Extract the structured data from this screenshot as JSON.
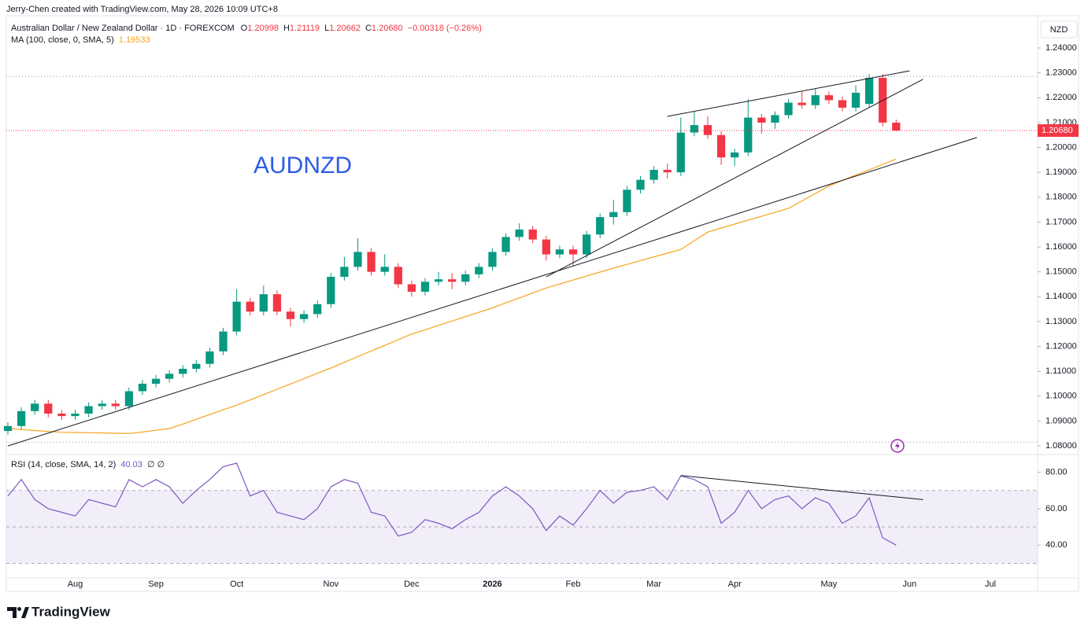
{
  "header": {
    "attribution": "Jerry-Chen created with TradingView.com, May 28, 2026 10:09 UTC+8",
    "symbol": "Australian Dollar / New Zealand Dollar · 1D · FOREXCOM",
    "o": "O",
    "h": "H",
    "l": "L",
    "c": "C",
    "change": "−0.00318 (−0.26%)",
    "currency": "NZD",
    "watermark": "AUDNZD",
    "brand": "TradingView"
  },
  "chart_data": [
    {
      "type": "candlestick",
      "categories": [
        null,
        null,
        null,
        null,
        null,
        "Aug",
        null,
        null,
        null,
        null,
        null,
        "Sep",
        null,
        null,
        null,
        null,
        null,
        "Oct",
        null,
        null,
        null,
        null,
        null,
        null,
        "Nov",
        null,
        null,
        null,
        null,
        null,
        "Dec",
        null,
        null,
        null,
        null,
        null,
        "2026",
        null,
        null,
        null,
        null,
        null,
        "Feb",
        null,
        null,
        null,
        null,
        null,
        "Mar",
        null,
        null,
        null,
        null,
        null,
        "Apr",
        null,
        null,
        null,
        null,
        null,
        null,
        "May",
        null,
        null,
        null,
        null,
        null,
        "Jun",
        null,
        null,
        null,
        null,
        null,
        "Jul"
      ],
      "open": [
        1.086,
        1.088,
        1.094,
        1.097,
        1.093,
        1.092,
        1.093,
        1.096,
        1.097,
        1.096,
        1.102,
        1.105,
        1.107,
        1.109,
        1.111,
        1.113,
        1.118,
        1.126,
        1.138,
        1.134,
        1.141,
        1.134,
        1.131,
        1.133,
        1.137,
        1.148,
        1.152,
        1.158,
        1.15,
        1.152,
        1.145,
        1.142,
        1.146,
        1.147,
        1.146,
        1.149,
        1.152,
        1.158,
        1.164,
        1.167,
        1.163,
        1.157,
        1.159,
        1.157,
        1.165,
        1.172,
        1.174,
        1.183,
        1.187,
        1.191,
        1.19,
        1.206,
        1.209,
        1.205,
        1.196,
        1.198,
        1.212,
        1.21,
        1.213,
        1.218,
        1.217,
        1.221,
        1.219,
        1.216,
        1.2175,
        1.228,
        1.20998,
        null,
        null,
        null,
        null,
        null,
        null,
        null
      ],
      "high": [
        1.0895,
        1.0955,
        1.0985,
        1.0985,
        1.0945,
        1.0945,
        1.0975,
        1.0985,
        1.0985,
        1.1035,
        1.1065,
        1.1085,
        1.1105,
        1.1125,
        1.1145,
        1.1195,
        1.1275,
        1.143,
        1.1395,
        1.1445,
        1.1425,
        1.1355,
        1.1345,
        1.1385,
        1.1495,
        1.156,
        1.1635,
        1.1595,
        1.157,
        1.1535,
        1.1465,
        1.1475,
        1.15,
        1.1495,
        1.1505,
        1.1535,
        1.1595,
        1.1655,
        1.1695,
        1.1685,
        1.1645,
        1.1605,
        1.1605,
        1.1665,
        1.1735,
        1.179,
        1.1845,
        1.1885,
        1.1925,
        1.1935,
        1.212,
        1.2145,
        1.2125,
        1.2065,
        1.1995,
        1.2195,
        1.2135,
        1.2145,
        1.2195,
        1.2225,
        1.2235,
        1.2225,
        1.2205,
        1.225,
        1.2295,
        1.2295,
        1.21119,
        null,
        null,
        null,
        null,
        null,
        null,
        null
      ],
      "low": [
        1.0845,
        1.0865,
        1.0925,
        1.0915,
        1.0905,
        1.0905,
        1.0915,
        1.0945,
        1.0945,
        1.0945,
        1.1005,
        1.1035,
        1.1055,
        1.1075,
        1.1095,
        1.1115,
        1.1165,
        1.1245,
        1.1325,
        1.1325,
        1.1325,
        1.128,
        1.1295,
        1.1315,
        1.1355,
        1.1465,
        1.1505,
        1.1485,
        1.1485,
        1.1435,
        1.14,
        1.1405,
        1.1445,
        1.143,
        1.1445,
        1.1475,
        1.1505,
        1.1565,
        1.1625,
        1.1615,
        1.1545,
        1.1555,
        1.1525,
        1.1555,
        1.1635,
        1.169,
        1.1725,
        1.1815,
        1.1855,
        1.1875,
        1.1885,
        1.2045,
        1.2035,
        1.193,
        1.1925,
        1.1965,
        1.2055,
        1.2075,
        1.2115,
        1.2155,
        1.2155,
        1.2175,
        1.2145,
        1.2145,
        1.216,
        1.2085,
        1.20662,
        null,
        null,
        null,
        null,
        null,
        null,
        null
      ],
      "close": [
        1.088,
        1.094,
        1.097,
        1.093,
        1.092,
        1.093,
        1.096,
        1.097,
        1.096,
        1.102,
        1.105,
        1.107,
        1.109,
        1.111,
        1.113,
        1.118,
        1.126,
        1.138,
        1.134,
        1.141,
        1.134,
        1.131,
        1.133,
        1.137,
        1.148,
        1.152,
        1.158,
        1.15,
        1.152,
        1.145,
        1.142,
        1.146,
        1.147,
        1.146,
        1.149,
        1.152,
        1.158,
        1.164,
        1.167,
        1.163,
        1.157,
        1.159,
        1.157,
        1.165,
        1.172,
        1.174,
        1.183,
        1.187,
        1.191,
        1.19,
        1.206,
        1.209,
        1.205,
        1.196,
        1.198,
        1.212,
        1.21,
        1.213,
        1.218,
        1.217,
        1.221,
        1.219,
        1.216,
        1.222,
        1.228,
        1.21,
        1.2068,
        null,
        null,
        null,
        null,
        null,
        null,
        null
      ],
      "last_price_label": "1.20680",
      "colors": {
        "up": "#089981",
        "down": "#f23645"
      },
      "series": [
        {
          "name": "MA (100, close, 0, SMA, 5)",
          "color": "#f7a21b",
          "values": [
            1.087,
            1.0866,
            1.0862,
            1.0858,
            1.0855,
            1.0854,
            1.0853,
            1.0852,
            1.0851,
            1.085,
            1.0856,
            1.0863,
            1.087,
            1.0888,
            1.0907,
            1.0926,
            1.0945,
            1.0964,
            1.0985,
            1.1006,
            1.1028,
            1.1049,
            1.107,
            1.1092,
            1.1113,
            1.1136,
            1.1159,
            1.1182,
            1.1204,
            1.1227,
            1.125,
            1.1267,
            1.1285,
            1.1302,
            1.132,
            1.1337,
            1.1355,
            1.1375,
            1.1395,
            1.1415,
            1.1435,
            1.1451,
            1.1467,
            1.1483,
            1.1499,
            1.1515,
            1.153,
            1.1545,
            1.156,
            1.1575,
            1.159,
            1.1625,
            1.166,
            1.1676,
            1.1692,
            1.1708,
            1.1723,
            1.1739,
            1.1755,
            1.1785,
            1.1815,
            1.1845,
            1.1867,
            1.1889,
            1.191,
            1.1932,
            1.19533,
            null,
            null,
            null,
            null,
            null,
            null,
            null
          ]
        }
      ],
      "trendlines": [
        {
          "from": [
            0,
            1.08
          ],
          "to": [
            72,
            1.204
          ]
        },
        {
          "from": [
            40,
            1.148
          ],
          "to": [
            68,
            1.2274
          ]
        },
        {
          "from": [
            49,
            1.2125
          ],
          "to": [
            67,
            1.2308
          ]
        }
      ],
      "range_lines": [
        1.2286,
        1.0815
      ],
      "ylim": [
        1.0775,
        1.2517
      ],
      "yticks": [
        {
          "value": 1.08,
          "label": "1.08000"
        },
        {
          "value": 1.09,
          "label": "1.09000"
        },
        {
          "value": 1.1,
          "label": "1.10000"
        },
        {
          "value": 1.11,
          "label": "1.11000"
        },
        {
          "value": 1.12,
          "label": "1.12000"
        },
        {
          "value": 1.13,
          "label": "1.13000"
        },
        {
          "value": 1.14,
          "label": "1.14000"
        },
        {
          "value": 1.15,
          "label": "1.15000"
        },
        {
          "value": 1.16,
          "label": "1.16000"
        },
        {
          "value": 1.17,
          "label": "1.17000"
        },
        {
          "value": 1.18,
          "label": "1.18000"
        },
        {
          "value": 1.19,
          "label": "1.19000"
        },
        {
          "value": 1.2,
          "label": "1.20000"
        },
        {
          "value": 1.21,
          "label": "1.21000"
        },
        {
          "value": 1.22,
          "label": "1.22000"
        },
        {
          "value": 1.23,
          "label": "1.23000"
        },
        {
          "value": 1.24,
          "label": "1.24000"
        }
      ],
      "grid": false
    },
    {
      "type": "line",
      "series": [
        {
          "name": "RSI (14, close, SMA, 14, 2)",
          "color": "#7e57c2",
          "values": [
            67,
            76,
            65,
            60,
            58,
            56,
            65,
            63,
            61,
            76,
            72,
            76,
            72,
            63,
            70,
            76,
            83,
            85,
            67,
            70,
            58,
            56,
            54,
            60,
            72,
            76,
            74,
            58,
            56,
            45,
            47,
            54,
            52,
            49,
            54,
            58,
            67,
            72,
            67,
            60,
            48,
            56,
            51,
            60,
            70,
            63,
            69,
            70,
            72,
            65,
            78,
            76,
            72,
            52,
            58,
            70,
            60,
            65,
            67,
            60,
            66,
            63,
            52,
            56,
            66,
            44,
            40.03,
            null,
            null,
            null,
            null,
            null,
            null,
            null
          ]
        }
      ],
      "flags": "∅ ∅",
      "levels": [
        70,
        50,
        30
      ],
      "band_color": "#7e57c2",
      "trendlines": [
        {
          "from": [
            50,
            78.2
          ],
          "to": [
            68,
            65.0
          ]
        }
      ],
      "ylim": [
        22,
        88
      ],
      "yticks": [
        {
          "value": 40,
          "label": "40.00"
        },
        {
          "value": 60,
          "label": "60.00"
        },
        {
          "value": 80,
          "label": "80.00"
        }
      ],
      "grid": false
    }
  ]
}
